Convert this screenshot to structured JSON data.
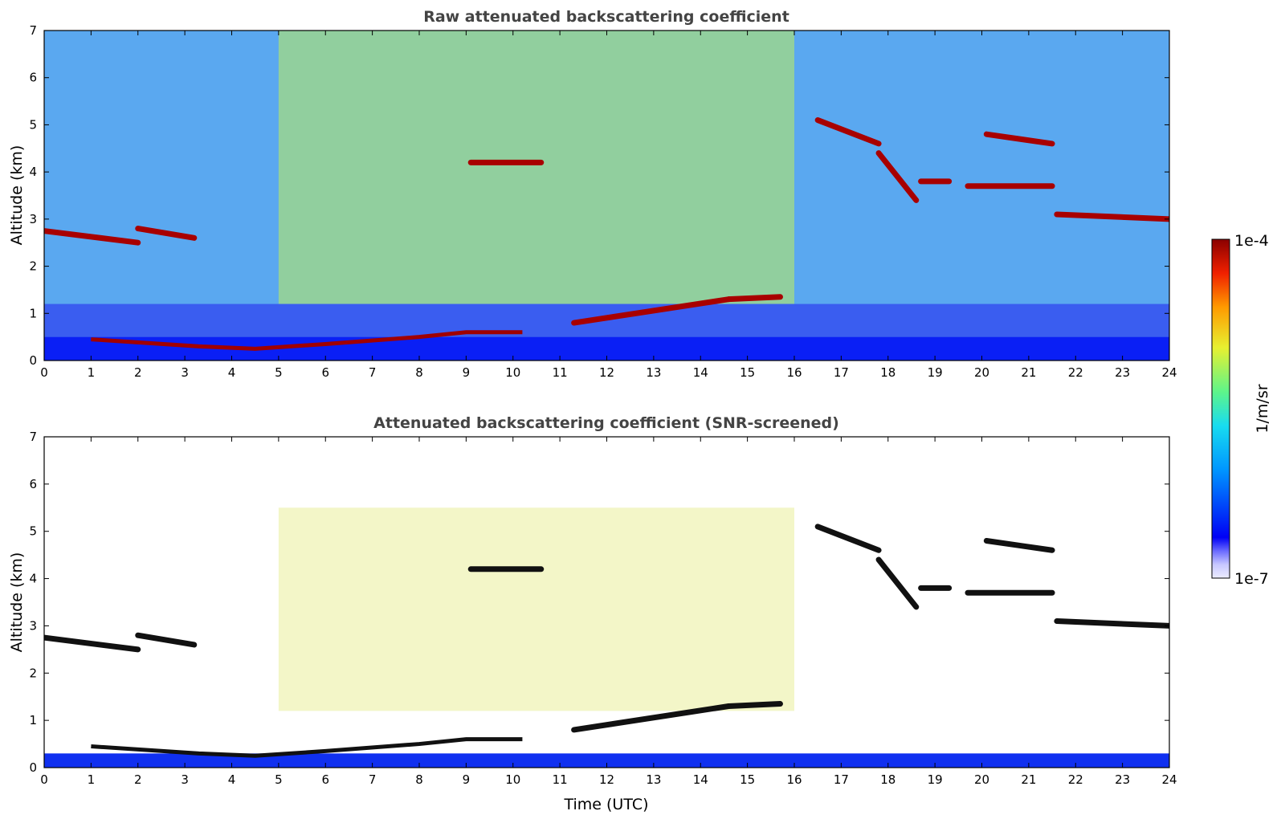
{
  "chart_data": [
    {
      "type": "heatmap",
      "title": "Raw attenuated backscattering coefficient",
      "xlabel": "",
      "ylabel": "Altitude (km)",
      "xlim": [
        0,
        24
      ],
      "ylim": [
        0,
        7
      ],
      "x_ticks": [
        "0",
        "1",
        "2",
        "3",
        "4",
        "5",
        "6",
        "7",
        "8",
        "9",
        "10",
        "11",
        "12",
        "13",
        "14",
        "15",
        "16",
        "17",
        "18",
        "19",
        "20",
        "21",
        "22",
        "23",
        "24"
      ],
      "y_ticks": [
        "0",
        "1",
        "2",
        "3",
        "4",
        "5",
        "6",
        "7"
      ],
      "colormap": "jet",
      "boundary_layer_top_km": [
        [
          1.0,
          0.45
        ],
        [
          3.3,
          0.3
        ],
        [
          4.5,
          0.25
        ],
        [
          6,
          0.35
        ],
        [
          8,
          0.5
        ],
        [
          9,
          0.6
        ],
        [
          10.2,
          0.6
        ]
      ],
      "cloud_layers": [
        {
          "x": [
            0,
            2.0
          ],
          "altitude_km": [
            2.75,
            2.5
          ]
        },
        {
          "x": [
            2.0,
            3.2
          ],
          "altitude_km": [
            2.8,
            2.6
          ]
        },
        {
          "x": [
            9.1,
            10.6
          ],
          "altitude_km": [
            4.2,
            4.2
          ]
        },
        {
          "x": [
            11.3,
            14.6
          ],
          "altitude_km": [
            0.8,
            1.3
          ]
        },
        {
          "x": [
            14.6,
            15.7
          ],
          "altitude_km": [
            1.3,
            1.35
          ]
        },
        {
          "x": [
            16.5,
            17.8
          ],
          "altitude_km": [
            5.1,
            4.6
          ]
        },
        {
          "x": [
            17.8,
            18.6
          ],
          "altitude_km": [
            4.4,
            3.4
          ]
        },
        {
          "x": [
            18.7,
            19.3
          ],
          "altitude_km": [
            3.8,
            3.8
          ]
        },
        {
          "x": [
            19.7,
            21.5
          ],
          "altitude_km": [
            3.7,
            3.7
          ]
        },
        {
          "x": [
            20.1,
            21.5
          ],
          "altitude_km": [
            4.8,
            4.6
          ]
        },
        {
          "x": [
            21.6,
            24.0
          ],
          "altitude_km": [
            3.1,
            3.0
          ]
        }
      ]
    },
    {
      "type": "heatmap",
      "title": "Attenuated backscattering coefficient (SNR-screened)",
      "xlabel": "Time (UTC)",
      "ylabel": "Altitude (km)",
      "xlim": [
        0,
        24
      ],
      "ylim": [
        0,
        7
      ],
      "x_ticks": [
        "0",
        "1",
        "2",
        "3",
        "4",
        "5",
        "6",
        "7",
        "8",
        "9",
        "10",
        "11",
        "12",
        "13",
        "14",
        "15",
        "16",
        "17",
        "18",
        "19",
        "20",
        "21",
        "22",
        "23",
        "24"
      ],
      "y_ticks": [
        "0",
        "1",
        "2",
        "3",
        "4",
        "5",
        "6",
        "7"
      ],
      "colormap": "jet"
    }
  ],
  "colorbar": {
    "label": "1/m/sr",
    "max_label": "1e-4",
    "min_label": "1e-7",
    "scale": "log",
    "range": [
      1e-07,
      0.0001
    ]
  },
  "colors": {
    "title_text": "#444444",
    "axis": "#000000",
    "low": "#0000f5",
    "mid": "#27e8c0",
    "high": "#a00000",
    "cloud_core_screened": "#111111"
  }
}
